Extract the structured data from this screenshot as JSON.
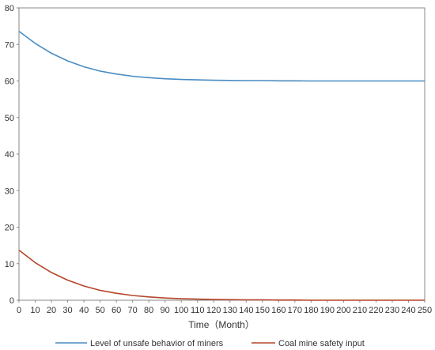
{
  "chart_data": {
    "type": "line",
    "xlabel": "Time（Month）",
    "ylabel": "",
    "xlim": [
      0,
      250
    ],
    "ylim": [
      0,
      80
    ],
    "x_ticks": [
      0,
      10,
      20,
      30,
      40,
      50,
      60,
      70,
      80,
      90,
      100,
      110,
      120,
      130,
      140,
      150,
      160,
      170,
      180,
      190,
      200,
      210,
      220,
      230,
      240,
      250
    ],
    "y_ticks": [
      0,
      10,
      20,
      30,
      40,
      50,
      60,
      70,
      80
    ],
    "grid": false,
    "legend_position": "bottom",
    "x": [
      0,
      10,
      20,
      30,
      40,
      50,
      60,
      70,
      80,
      90,
      100,
      110,
      120,
      130,
      140,
      150,
      160,
      170,
      180,
      190,
      200,
      210,
      220,
      230,
      240,
      250
    ],
    "series": [
      {
        "name": "Level of unsafe behavior of miners",
        "color": "#4a8cc2",
        "values": [
          73.6,
          70.3,
          67.6,
          65.5,
          63.9,
          62.7,
          61.9,
          61.3,
          60.9,
          60.6,
          60.4,
          60.3,
          60.2,
          60.15,
          60.1,
          60.1,
          60.05,
          60.05,
          60.0,
          60.0,
          60.0,
          60.0,
          60.0,
          60.0,
          60.0,
          60.0
        ]
      },
      {
        "name": "Coal mine safety input",
        "color": "#b5452a",
        "values": [
          13.7,
          10.3,
          7.6,
          5.5,
          3.9,
          2.7,
          1.9,
          1.3,
          0.9,
          0.6,
          0.4,
          0.3,
          0.2,
          0.15,
          0.1,
          0.1,
          0.05,
          0.05,
          0.0,
          0.0,
          0.0,
          0.0,
          0.0,
          0.0,
          0.0,
          0.0
        ]
      }
    ]
  }
}
